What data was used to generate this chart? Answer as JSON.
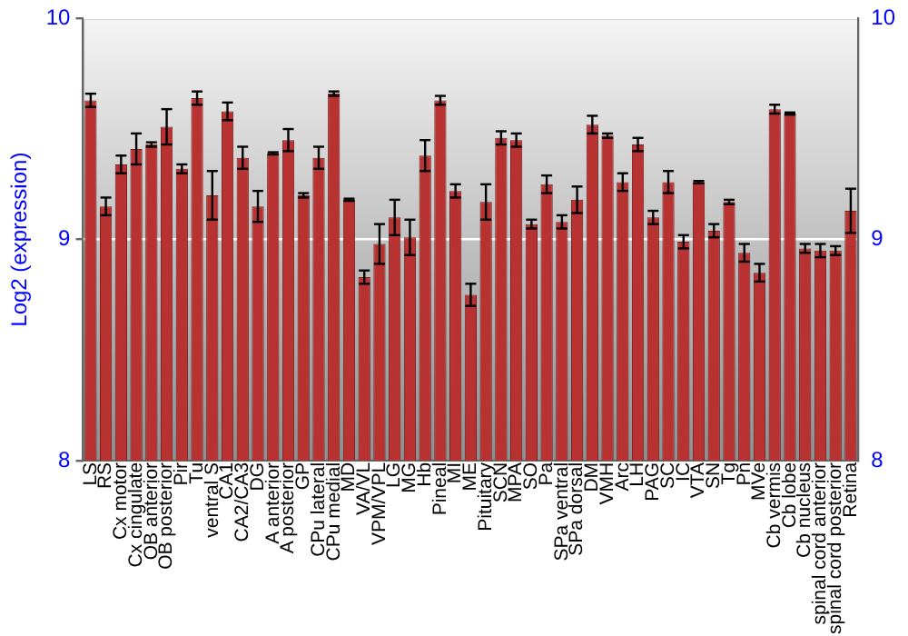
{
  "chart_data": {
    "type": "bar",
    "ylabel": "Log2 (expression)",
    "categories": [
      "LS",
      "RS",
      "Cx motor",
      "Cx cingulate",
      "OB anterior",
      "OB posterior",
      "Pir",
      "Tu",
      "ventral S",
      "CA1",
      "CA2/CA3",
      "DG",
      "A anterior",
      "A posterior",
      "GP",
      "CPu lateral",
      "CPu medial",
      "MD",
      "VA/VL",
      "VPM/VPL",
      "LG",
      "MG",
      "Hb",
      "Pineal",
      "MI",
      "ME",
      "Pituitary",
      "SCN",
      "MPA",
      "SO",
      "Pa",
      "SPa ventral",
      "SPa dorsal",
      "DM",
      "VMH",
      "Arc",
      "LH",
      "PAG",
      "SC",
      "IC",
      "VTA",
      "SN",
      "Tg",
      "Pn",
      "MVe",
      "Cb vermis",
      "Cb lobe",
      "Cb nucleus",
      "spinal cord anterior",
      "spinal cord posterior",
      "Retina"
    ],
    "values": [
      9.63,
      9.15,
      9.34,
      9.41,
      9.43,
      9.51,
      9.32,
      9.64,
      9.2,
      9.58,
      9.37,
      9.15,
      9.39,
      9.45,
      9.2,
      9.37,
      9.66,
      9.18,
      8.83,
      8.98,
      9.1,
      9.01,
      9.38,
      9.63,
      9.22,
      8.75,
      9.17,
      9.46,
      9.45,
      9.07,
      9.25,
      9.08,
      9.18,
      9.52,
      9.47,
      9.26,
      9.43,
      9.1,
      9.26,
      8.99,
      9.26,
      9.04,
      9.17,
      8.94,
      8.85,
      9.59,
      9.57,
      8.96,
      8.95,
      8.95,
      9.13
    ],
    "errors": [
      0.03,
      0.04,
      0.04,
      0.07,
      0.01,
      0.08,
      0.02,
      0.03,
      0.11,
      0.04,
      0.05,
      0.07,
      0.005,
      0.05,
      0.01,
      0.05,
      0.01,
      0.005,
      0.03,
      0.09,
      0.08,
      0.08,
      0.07,
      0.02,
      0.03,
      0.05,
      0.08,
      0.03,
      0.03,
      0.02,
      0.04,
      0.03,
      0.06,
      0.04,
      0.01,
      0.04,
      0.03,
      0.03,
      0.05,
      0.03,
      0.005,
      0.03,
      0.01,
      0.04,
      0.04,
      0.02,
      0.005,
      0.02,
      0.03,
      0.02,
      0.1
    ],
    "color": "#b83232",
    "ylim": [
      8,
      10
    ],
    "yticks": [
      8,
      9,
      10
    ],
    "y2lim": [
      8,
      10
    ],
    "y2ticks": [
      8,
      9,
      10
    ],
    "grid": "y",
    "legend": false
  }
}
